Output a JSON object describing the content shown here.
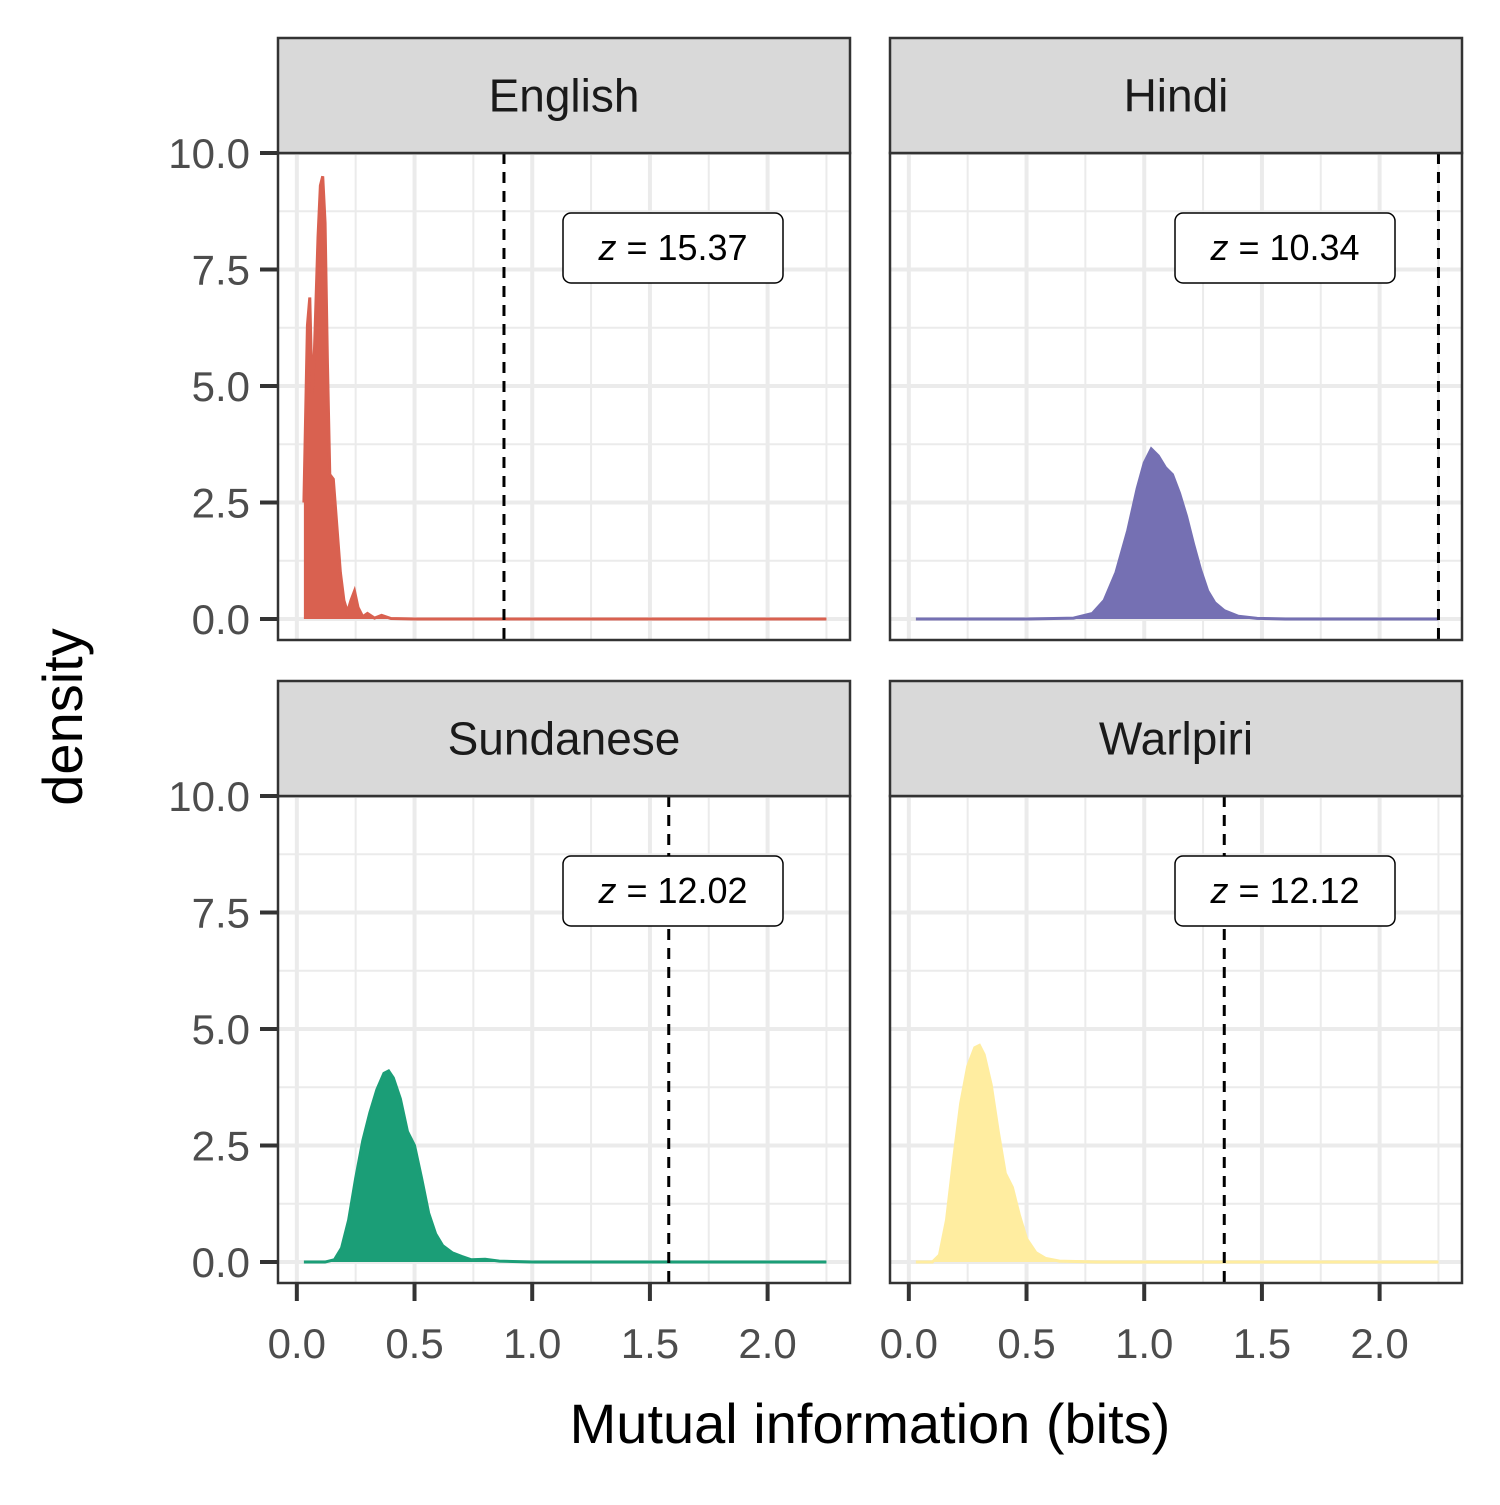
{
  "chart_data": {
    "type": "density",
    "xlabel": "Mutual information (bits)",
    "ylabel": "density",
    "xlim": [
      -0.08,
      2.35
    ],
    "ylim": [
      -0.45,
      10.0
    ],
    "x_ticks": [
      0.0,
      0.5,
      1.0,
      1.5,
      2.0
    ],
    "x_tick_labels": [
      "0.0",
      "0.5",
      "1.0",
      "1.5",
      "2.0"
    ],
    "y_ticks": [
      0.0,
      2.5,
      5.0,
      7.5,
      10.0
    ],
    "y_tick_labels": [
      "0.0",
      "2.5",
      "5.0",
      "7.5",
      "10.0"
    ],
    "grid": true,
    "z_prefix": "z",
    "panels": [
      {
        "name": "English",
        "color": "#D96150",
        "observed_mi": 0.88,
        "z_label": " = 15.37",
        "x_range": [
          0.03,
          2.25
        ],
        "density": [
          [
            0.03,
            2.5
          ],
          [
            0.045,
            6.3
          ],
          [
            0.055,
            6.9
          ],
          [
            0.065,
            4.8
          ],
          [
            0.075,
            5.8
          ],
          [
            0.09,
            8.2
          ],
          [
            0.1,
            9.3
          ],
          [
            0.11,
            9.5
          ],
          [
            0.12,
            8.5
          ],
          [
            0.13,
            5.5
          ],
          [
            0.14,
            3.1
          ],
          [
            0.155,
            3.0
          ],
          [
            0.17,
            2.0
          ],
          [
            0.185,
            1.0
          ],
          [
            0.2,
            0.4
          ],
          [
            0.215,
            0.15
          ],
          [
            0.23,
            0.4
          ],
          [
            0.245,
            0.6
          ],
          [
            0.26,
            0.25
          ],
          [
            0.28,
            0.05
          ],
          [
            0.3,
            0.12
          ],
          [
            0.33,
            0.02
          ],
          [
            0.36,
            0.08
          ],
          [
            0.4,
            0.01
          ],
          [
            0.5,
            0.0
          ],
          [
            1.0,
            0.0
          ],
          [
            2.25,
            0.0
          ]
        ]
      },
      {
        "name": "Hindi",
        "color": "#7570B3",
        "observed_mi": 2.25,
        "z_label": " = 10.34",
        "x_range": [
          0.03,
          2.25
        ],
        "density": [
          [
            0.03,
            0.0
          ],
          [
            0.5,
            0.0
          ],
          [
            0.7,
            0.02
          ],
          [
            0.78,
            0.12
          ],
          [
            0.83,
            0.4
          ],
          [
            0.88,
            1.0
          ],
          [
            0.93,
            1.9
          ],
          [
            0.97,
            2.8
          ],
          [
            1.0,
            3.35
          ],
          [
            1.03,
            3.65
          ],
          [
            1.06,
            3.5
          ],
          [
            1.09,
            3.25
          ],
          [
            1.12,
            3.1
          ],
          [
            1.15,
            2.7
          ],
          [
            1.18,
            2.2
          ],
          [
            1.21,
            1.6
          ],
          [
            1.24,
            1.05
          ],
          [
            1.27,
            0.6
          ],
          [
            1.3,
            0.35
          ],
          [
            1.34,
            0.18
          ],
          [
            1.4,
            0.06
          ],
          [
            1.48,
            0.015
          ],
          [
            1.6,
            0.0
          ],
          [
            2.25,
            0.0
          ]
        ]
      },
      {
        "name": "Sundanese",
        "color": "#1B9E77",
        "observed_mi": 1.58,
        "z_label": " = 12.02",
        "x_range": [
          0.03,
          2.25
        ],
        "density": [
          [
            0.03,
            0.0
          ],
          [
            0.12,
            0.0
          ],
          [
            0.16,
            0.05
          ],
          [
            0.19,
            0.3
          ],
          [
            0.22,
            0.9
          ],
          [
            0.25,
            1.8
          ],
          [
            0.28,
            2.6
          ],
          [
            0.31,
            3.2
          ],
          [
            0.34,
            3.7
          ],
          [
            0.37,
            4.05
          ],
          [
            0.39,
            4.1
          ],
          [
            0.41,
            3.95
          ],
          [
            0.44,
            3.5
          ],
          [
            0.47,
            2.8
          ],
          [
            0.5,
            2.5
          ],
          [
            0.53,
            1.8
          ],
          [
            0.56,
            1.05
          ],
          [
            0.59,
            0.6
          ],
          [
            0.62,
            0.35
          ],
          [
            0.66,
            0.2
          ],
          [
            0.7,
            0.12
          ],
          [
            0.74,
            0.05
          ],
          [
            0.8,
            0.06
          ],
          [
            0.86,
            0.02
          ],
          [
            1.0,
            0.0
          ],
          [
            2.25,
            0.0
          ]
        ]
      },
      {
        "name": "Warlpiri",
        "color": "#FFEDA0",
        "observed_mi": 1.34,
        "z_label": " = 12.12",
        "x_range": [
          0.03,
          2.25
        ],
        "density": [
          [
            0.03,
            0.0
          ],
          [
            0.1,
            0.0
          ],
          [
            0.13,
            0.15
          ],
          [
            0.16,
            0.9
          ],
          [
            0.19,
            2.2
          ],
          [
            0.22,
            3.4
          ],
          [
            0.25,
            4.2
          ],
          [
            0.28,
            4.6
          ],
          [
            0.3,
            4.65
          ],
          [
            0.32,
            4.45
          ],
          [
            0.35,
            3.8
          ],
          [
            0.38,
            2.8
          ],
          [
            0.41,
            1.9
          ],
          [
            0.44,
            1.6
          ],
          [
            0.47,
            1.0
          ],
          [
            0.5,
            0.5
          ],
          [
            0.54,
            0.2
          ],
          [
            0.58,
            0.08
          ],
          [
            0.64,
            0.02
          ],
          [
            0.8,
            0.0
          ],
          [
            2.25,
            0.0
          ]
        ]
      }
    ]
  }
}
